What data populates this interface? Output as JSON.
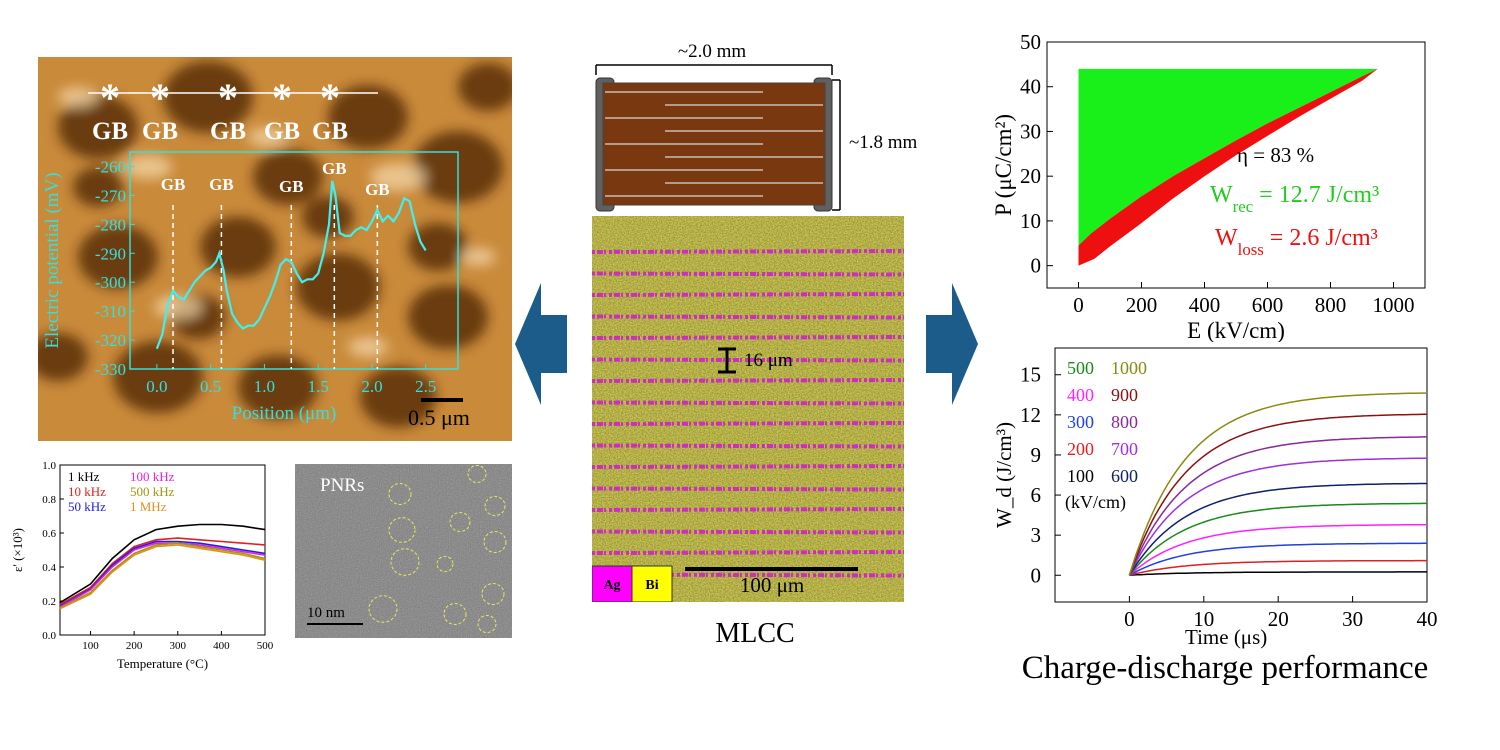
{
  "afm": {
    "gb_top_labels": [
      "GB",
      "GB",
      "GB",
      "GB",
      "GB"
    ],
    "gb_top_marker": "*",
    "gb_inner_labels": [
      "GB",
      "GB",
      "GB",
      "GB",
      "GB"
    ],
    "inner_gb_x": [
      0.15,
      0.6,
      1.25,
      1.65,
      2.05
    ],
    "y_axis_label": "Electric potential (mV)",
    "x_axis_label": "Position (μm)",
    "x_ticks": [
      "0.0",
      "0.5",
      "1.0",
      "1.5",
      "2.0",
      "2.5"
    ],
    "y_ticks": [
      "-260",
      "-270",
      "-280",
      "-290",
      "-300",
      "-310",
      "-320",
      "-330"
    ],
    "scale_bar": "0.5  μm",
    "profile": [
      [
        0.0,
        -323
      ],
      [
        0.05,
        -318
      ],
      [
        0.1,
        -308
      ],
      [
        0.15,
        -303
      ],
      [
        0.2,
        -305
      ],
      [
        0.25,
        -306
      ],
      [
        0.3,
        -303
      ],
      [
        0.35,
        -300
      ],
      [
        0.4,
        -298
      ],
      [
        0.45,
        -296
      ],
      [
        0.5,
        -295
      ],
      [
        0.55,
        -293
      ],
      [
        0.58,
        -290
      ],
      [
        0.62,
        -296
      ],
      [
        0.65,
        -303
      ],
      [
        0.7,
        -311
      ],
      [
        0.75,
        -314
      ],
      [
        0.8,
        -316
      ],
      [
        0.85,
        -315
      ],
      [
        0.9,
        -315
      ],
      [
        0.95,
        -313
      ],
      [
        1.0,
        -309
      ],
      [
        1.05,
        -305
      ],
      [
        1.1,
        -300
      ],
      [
        1.15,
        -294
      ],
      [
        1.2,
        -292
      ],
      [
        1.25,
        -293
      ],
      [
        1.3,
        -297
      ],
      [
        1.35,
        -300
      ],
      [
        1.4,
        -299
      ],
      [
        1.45,
        -299
      ],
      [
        1.5,
        -297
      ],
      [
        1.55,
        -290
      ],
      [
        1.6,
        -280
      ],
      [
        1.63,
        -265
      ],
      [
        1.66,
        -270
      ],
      [
        1.7,
        -283
      ],
      [
        1.75,
        -284
      ],
      [
        1.8,
        -284
      ],
      [
        1.85,
        -282
      ],
      [
        1.9,
        -281
      ],
      [
        1.95,
        -282
      ],
      [
        2.0,
        -279
      ],
      [
        2.05,
        -275
      ],
      [
        2.1,
        -279
      ],
      [
        2.15,
        -277
      ],
      [
        2.2,
        -279
      ],
      [
        2.25,
        -276
      ],
      [
        2.3,
        -271
      ],
      [
        2.35,
        -272
      ],
      [
        2.4,
        -280
      ],
      [
        2.45,
        -286
      ],
      [
        2.5,
        -289
      ]
    ]
  },
  "permittivity": {
    "y_axis_label": "ε' (×10³)",
    "x_axis_label": "Temperature (°C)",
    "x_ticks": [
      "100",
      "200",
      "300",
      "400",
      "500"
    ],
    "y_ticks": [
      "0.0",
      "0.2",
      "0.4",
      "0.6",
      "0.8",
      "1.0"
    ],
    "legend": [
      {
        "label": "1  kHz",
        "color": "#000000"
      },
      {
        "label": "100  kHz",
        "color": "#e020e0"
      },
      {
        "label": "10  kHz",
        "color": "#e02020"
      },
      {
        "label": "500  kHz",
        "color": "#9a9a10"
      },
      {
        "label": "50  kHz",
        "color": "#2020e0"
      },
      {
        "label": "1  MHz",
        "color": "#e09020"
      }
    ],
    "series": [
      {
        "color": "#000000",
        "pts": [
          [
            30,
            0.19
          ],
          [
            100,
            0.3
          ],
          [
            150,
            0.45
          ],
          [
            200,
            0.56
          ],
          [
            250,
            0.62
          ],
          [
            300,
            0.64
          ],
          [
            350,
            0.65
          ],
          [
            400,
            0.65
          ],
          [
            450,
            0.64
          ],
          [
            500,
            0.62
          ]
        ]
      },
      {
        "color": "#e02020",
        "pts": [
          [
            30,
            0.18
          ],
          [
            100,
            0.28
          ],
          [
            150,
            0.42
          ],
          [
            200,
            0.52
          ],
          [
            250,
            0.56
          ],
          [
            300,
            0.57
          ],
          [
            350,
            0.56
          ],
          [
            400,
            0.55
          ],
          [
            450,
            0.54
          ],
          [
            500,
            0.53
          ]
        ]
      },
      {
        "color": "#2020e0",
        "pts": [
          [
            30,
            0.17
          ],
          [
            100,
            0.27
          ],
          [
            150,
            0.41
          ],
          [
            200,
            0.51
          ],
          [
            250,
            0.55
          ],
          [
            300,
            0.55
          ],
          [
            350,
            0.54
          ],
          [
            400,
            0.52
          ],
          [
            450,
            0.5
          ],
          [
            500,
            0.48
          ]
        ]
      },
      {
        "color": "#e020e0",
        "pts": [
          [
            30,
            0.165
          ],
          [
            100,
            0.265
          ],
          [
            150,
            0.4
          ],
          [
            200,
            0.5
          ],
          [
            250,
            0.54
          ],
          [
            300,
            0.54
          ],
          [
            350,
            0.53
          ],
          [
            400,
            0.51
          ],
          [
            450,
            0.49
          ],
          [
            500,
            0.47
          ]
        ]
      },
      {
        "color": "#9a9a10",
        "pts": [
          [
            30,
            0.16
          ],
          [
            100,
            0.25
          ],
          [
            150,
            0.38
          ],
          [
            200,
            0.48
          ],
          [
            250,
            0.53
          ],
          [
            300,
            0.54
          ],
          [
            350,
            0.52
          ],
          [
            400,
            0.5
          ],
          [
            450,
            0.48
          ],
          [
            500,
            0.45
          ]
        ]
      },
      {
        "color": "#e09020",
        "pts": [
          [
            30,
            0.155
          ],
          [
            100,
            0.24
          ],
          [
            150,
            0.37
          ],
          [
            200,
            0.47
          ],
          [
            250,
            0.52
          ],
          [
            300,
            0.53
          ],
          [
            350,
            0.51
          ],
          [
            400,
            0.49
          ],
          [
            450,
            0.47
          ],
          [
            500,
            0.44
          ]
        ]
      }
    ]
  },
  "tem": {
    "label": "PNRs",
    "scale_bar": "10 nm"
  },
  "mlcc": {
    "width_label": "~2.0 mm",
    "height_label": "~1.8 mm",
    "layer_label": "16 μm",
    "scale_bar": "100 μm",
    "legend": [
      {
        "label": "Ag",
        "color": "#ff00ff"
      },
      {
        "label": "Bi",
        "color": "#ffff00"
      }
    ],
    "caption": "MLCC"
  },
  "hysteresis": {
    "y_axis_label": "P (μC/cm²)",
    "x_axis_label": "E (kV/cm)",
    "x_ticks": [
      "0",
      "200",
      "400",
      "600",
      "800",
      "1000"
    ],
    "y_ticks": [
      "0",
      "10",
      "20",
      "30",
      "40",
      "50"
    ],
    "eta": "η = 83 %",
    "wrec": "W_rec = 12.7 J/cm³",
    "wloss": "W_loss = 2.6 J/cm³",
    "charge_curve": [
      [
        0,
        0
      ],
      [
        50,
        1.5
      ],
      [
        100,
        4.3
      ],
      [
        200,
        9.5
      ],
      [
        300,
        15
      ],
      [
        400,
        20
      ],
      [
        500,
        24.7
      ],
      [
        600,
        29
      ],
      [
        700,
        33.3
      ],
      [
        800,
        37.3
      ],
      [
        900,
        41.3
      ],
      [
        950,
        44
      ]
    ],
    "discharge_curve": [
      [
        950,
        44
      ],
      [
        900,
        42.3
      ],
      [
        800,
        38.8
      ],
      [
        700,
        35.3
      ],
      [
        600,
        31.8
      ],
      [
        500,
        28
      ],
      [
        400,
        24
      ],
      [
        300,
        20
      ],
      [
        200,
        15.5
      ],
      [
        100,
        10.5
      ],
      [
        40,
        7.2
      ],
      [
        0,
        4.5
      ]
    ],
    "pmax": 44,
    "emax": 950
  },
  "discharge": {
    "y_axis_label": "W_d (J/cm³)",
    "x_axis_label": "Time (μs)",
    "x_ticks": [
      "0",
      "10",
      "20",
      "30",
      "40"
    ],
    "y_ticks": [
      "0",
      "3",
      "6",
      "9",
      "12",
      "15"
    ],
    "legend_unit": "(kV/cm)",
    "legend": [
      {
        "label": "500",
        "color": "#1a8a1a"
      },
      {
        "label": "1000",
        "color": "#8a8a10"
      },
      {
        "label": "400",
        "color": "#ff20ff"
      },
      {
        "label": "900",
        "color": "#8a1010"
      },
      {
        "label": "300",
        "color": "#2040e0"
      },
      {
        "label": "800",
        "color": "#8a2a9a"
      },
      {
        "label": "200",
        "color": "#e02020"
      },
      {
        "label": "700",
        "color": "#9a30e0"
      },
      {
        "label": "100",
        "color": "#000000"
      },
      {
        "label": "600",
        "color": "#10206a"
      }
    ],
    "series": [
      {
        "field": "100",
        "color": "#000000",
        "max": 0.25
      },
      {
        "field": "200",
        "color": "#e02020",
        "max": 1.1
      },
      {
        "field": "300",
        "color": "#2040e0",
        "max": 2.4
      },
      {
        "field": "400",
        "color": "#ff20ff",
        "max": 3.8
      },
      {
        "field": "500",
        "color": "#1a8a1a",
        "max": 5.4
      },
      {
        "field": "600",
        "color": "#10206a",
        "max": 6.9
      },
      {
        "field": "700",
        "color": "#9a30e0",
        "max": 8.8
      },
      {
        "field": "800",
        "color": "#8a2a9a",
        "max": 10.4
      },
      {
        "field": "900",
        "color": "#8a1010",
        "max": 12.1
      },
      {
        "field": "1000",
        "color": "#8a8a10",
        "max": 13.7
      }
    ]
  },
  "caption": "Charge-discharge performance",
  "chart_data": [
    {
      "type": "line",
      "title": "",
      "xlabel": "Position (μm)",
      "ylabel": "Electric potential (mV)",
      "xlim": [
        -0.25,
        2.8
      ],
      "ylim": [
        -330,
        -255
      ]
    },
    {
      "type": "line",
      "title": "",
      "xlabel": "Temperature (°C)",
      "ylabel": "ε' (×10³)",
      "xlim": [
        30,
        500
      ],
      "ylim": [
        0,
        1.0
      ]
    },
    {
      "type": "area",
      "title": "",
      "xlabel": "E (kV/cm)",
      "ylabel": "P (μC/cm²)",
      "xlim": [
        -100,
        1100
      ],
      "ylim": [
        -5,
        50
      ]
    },
    {
      "type": "line",
      "title": "",
      "xlabel": "Time (μs)",
      "ylabel": "W_d (J/cm³)",
      "xlim": [
        -10,
        40
      ],
      "ylim": [
        -2,
        17
      ]
    }
  ]
}
